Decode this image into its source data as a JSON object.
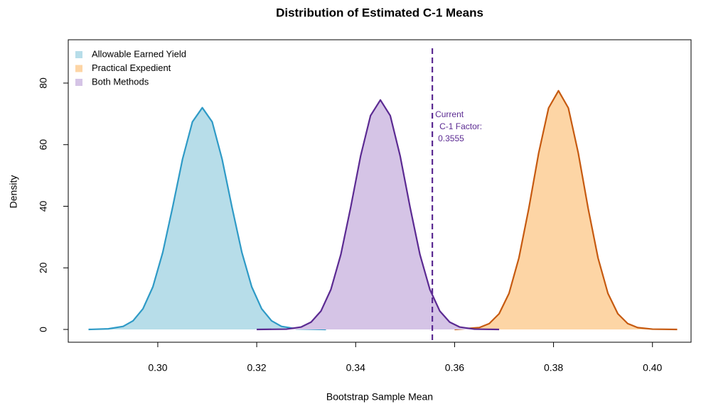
{
  "chart_data": {
    "type": "area",
    "title": "Distribution of Estimated C-1 Means",
    "xlabel": "Bootstrap Sample Mean",
    "ylabel": "Density",
    "xlim": [
      0.2819,
      0.4078
    ],
    "ylim": [
      -4.15,
      94.06
    ],
    "xticks": [
      {
        "value": 0.3,
        "label": "0.30"
      },
      {
        "value": 0.32,
        "label": "0.32"
      },
      {
        "value": 0.34,
        "label": "0.34"
      },
      {
        "value": 0.36,
        "label": "0.36"
      },
      {
        "value": 0.38,
        "label": "0.38"
      },
      {
        "value": 0.4,
        "label": "0.40"
      }
    ],
    "yticks": [
      0,
      20,
      40,
      60,
      80
    ],
    "legend": "top-left",
    "series": [
      {
        "name": "Allowable Earned Yield",
        "color": "#2e9ac6",
        "fill": "#b7dde9",
        "x": [
          0.286,
          0.29,
          0.293,
          0.295,
          0.297,
          0.299,
          0.301,
          0.303,
          0.305,
          0.307,
          0.309,
          0.311,
          0.313,
          0.315,
          0.317,
          0.319,
          0.321,
          0.323,
          0.325,
          0.328,
          0.334
        ],
        "values": [
          0,
          0.2,
          1,
          2.8,
          6.7,
          13.8,
          25,
          39.7,
          55.3,
          67.4,
          72,
          67.4,
          55.3,
          39.7,
          25,
          13.8,
          6.7,
          2.8,
          1,
          0.2,
          0
        ]
      },
      {
        "name": "Practical Expedient",
        "color": "#c65a10",
        "fill": "#fdd5a5",
        "x": [
          0.36,
          0.365,
          0.367,
          0.369,
          0.371,
          0.373,
          0.375,
          0.377,
          0.379,
          0.381,
          0.383,
          0.385,
          0.387,
          0.389,
          0.391,
          0.393,
          0.395,
          0.397,
          0.4,
          0.405
        ],
        "values": [
          0,
          0.6,
          1.9,
          5.1,
          11.7,
          23.2,
          39.3,
          57.3,
          71.9,
          77.5,
          71.9,
          57.3,
          39.3,
          23.2,
          11.7,
          5.1,
          1.9,
          0.6,
          0.1,
          0
        ]
      },
      {
        "name": "Both Methods",
        "color": "#5b2a92",
        "fill": "#d5c4e6",
        "x": [
          0.32,
          0.326,
          0.329,
          0.331,
          0.333,
          0.335,
          0.337,
          0.339,
          0.341,
          0.343,
          0.345,
          0.347,
          0.349,
          0.351,
          0.353,
          0.355,
          0.357,
          0.359,
          0.361,
          0.364,
          0.369
        ],
        "values": [
          0,
          0.1,
          0.8,
          2.4,
          6,
          13,
          24.3,
          39.7,
          56.3,
          69.4,
          74.5,
          69.4,
          56.3,
          39.7,
          24.3,
          13,
          6,
          2.4,
          0.8,
          0.1,
          0
        ]
      }
    ],
    "vline": {
      "x": 0.3555,
      "color": "#5b2a92",
      "annotation": [
        "Current",
        "C-1 Factor:",
        "0.3555"
      ]
    }
  }
}
